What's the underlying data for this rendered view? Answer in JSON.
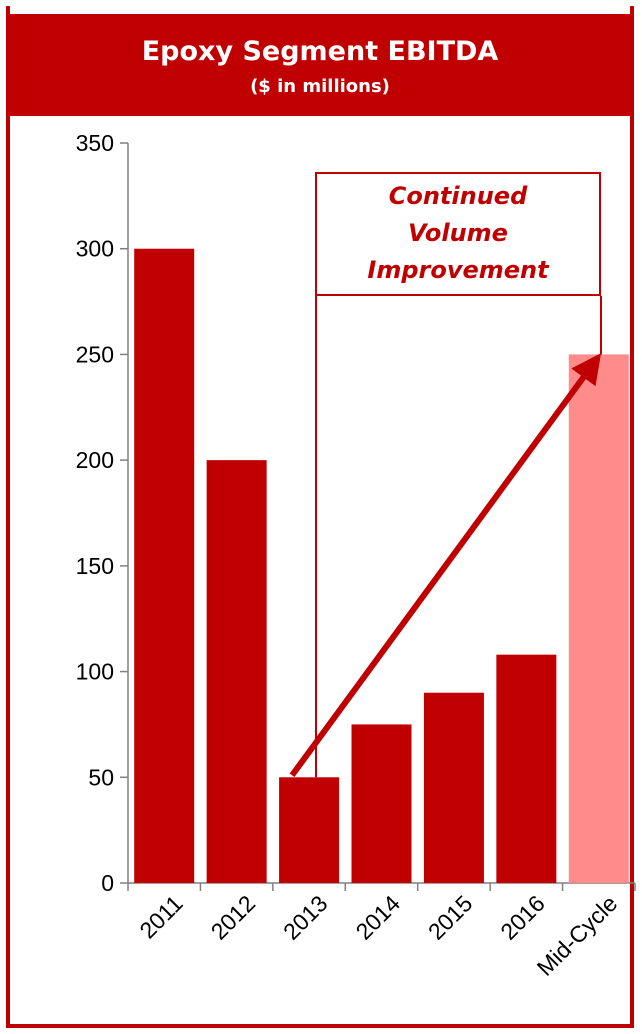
{
  "title": "Epoxy Segment EBITDA",
  "subtitle": "($ in millions)",
  "annotation": {
    "lines": [
      "Continued",
      "Volume",
      "Improvement"
    ]
  },
  "colors": {
    "primary": "#c00000",
    "highlight": "#ff8b8b",
    "frame": "#c00000"
  },
  "chart_data": {
    "type": "bar",
    "title": "Epoxy Segment EBITDA",
    "subtitle": "($ in millions)",
    "categories": [
      "2011",
      "2012",
      "2013",
      "2014",
      "2015",
      "2016",
      "Mid-Cycle"
    ],
    "values": [
      300,
      200,
      50,
      75,
      90,
      108,
      250
    ],
    "highlighted_category": "Mid-Cycle",
    "ylim": [
      0,
      350
    ],
    "yticks": [
      0,
      50,
      100,
      150,
      200,
      250,
      300,
      350
    ],
    "grid": false,
    "legend": "none",
    "annotation": {
      "text": "Continued Volume Improvement",
      "arrow_from": "2013",
      "arrow_to": "Mid-Cycle"
    }
  }
}
